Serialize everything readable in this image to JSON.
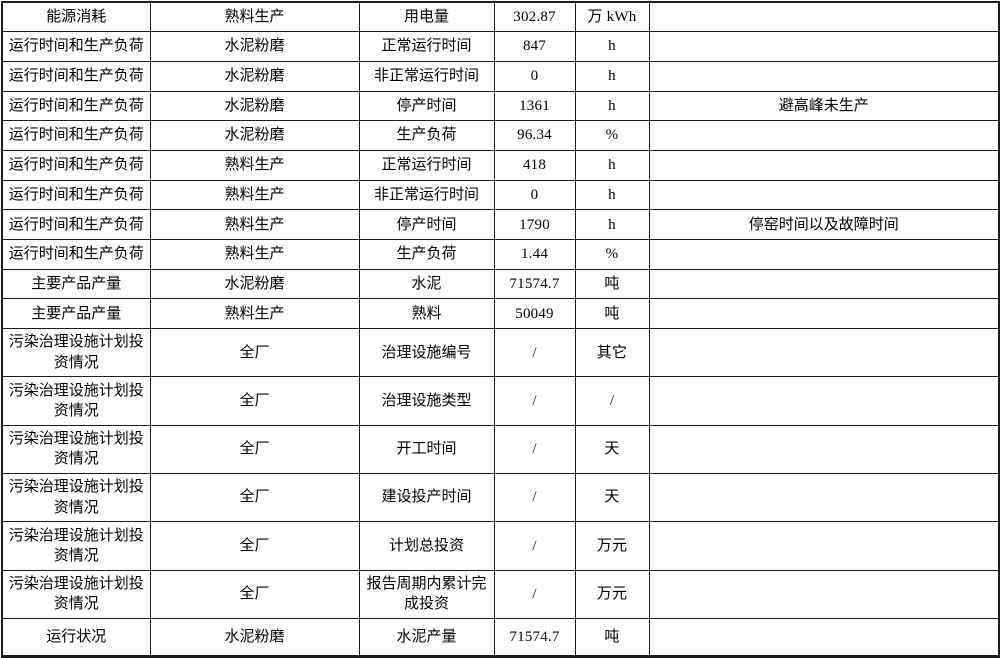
{
  "table": {
    "border_color": "#1c1c1c",
    "background_color": "#ffffff",
    "text_color": "#000000",
    "column_keys": [
      "category",
      "scope",
      "item",
      "value",
      "unit",
      "remark"
    ],
    "rows": [
      {
        "category": "能源消耗",
        "scope": "熟料生产",
        "item": "用电量",
        "value": "302.87",
        "unit": "万 kWh",
        "remark": ""
      },
      {
        "category": "运行时间和生产负荷",
        "scope": "水泥粉磨",
        "item": "正常运行时间",
        "value": "847",
        "unit": "h",
        "remark": ""
      },
      {
        "category": "运行时间和生产负荷",
        "scope": "水泥粉磨",
        "item": "非正常运行时间",
        "value": "0",
        "unit": "h",
        "remark": ""
      },
      {
        "category": "运行时间和生产负荷",
        "scope": "水泥粉磨",
        "item": "停产时间",
        "value": "1361",
        "unit": "h",
        "remark": "避高峰未生产"
      },
      {
        "category": "运行时间和生产负荷",
        "scope": "水泥粉磨",
        "item": "生产负荷",
        "value": "96.34",
        "unit": "%",
        "remark": ""
      },
      {
        "category": "运行时间和生产负荷",
        "scope": "熟料生产",
        "item": "正常运行时间",
        "value": "418",
        "unit": "h",
        "remark": ""
      },
      {
        "category": "运行时间和生产负荷",
        "scope": "熟料生产",
        "item": "非正常运行时间",
        "value": "0",
        "unit": "h",
        "remark": ""
      },
      {
        "category": "运行时间和生产负荷",
        "scope": "熟料生产",
        "item": "停产时间",
        "value": "1790",
        "unit": "h",
        "remark": "停窑时间以及故障时间"
      },
      {
        "category": "运行时间和生产负荷",
        "scope": "熟料生产",
        "item": "生产负荷",
        "value": "1.44",
        "unit": "%",
        "remark": ""
      },
      {
        "category": "主要产品产量",
        "scope": "水泥粉磨",
        "item": "水泥",
        "value": "71574.7",
        "unit": "吨",
        "remark": ""
      },
      {
        "category": "主要产品产量",
        "scope": "熟料生产",
        "item": "熟料",
        "value": "50049",
        "unit": "吨",
        "remark": ""
      },
      {
        "category": "污染治理设施计划投资情况",
        "scope": "全厂",
        "item": "治理设施编号",
        "value": "/",
        "unit": "其它",
        "remark": ""
      },
      {
        "category": "污染治理设施计划投资情况",
        "scope": "全厂",
        "item": "治理设施类型",
        "value": "/",
        "unit": "/",
        "remark": ""
      },
      {
        "category": "污染治理设施计划投资情况",
        "scope": "全厂",
        "item": "开工时间",
        "value": "/",
        "unit": "天",
        "remark": ""
      },
      {
        "category": "污染治理设施计划投资情况",
        "scope": "全厂",
        "item": "建设投产时间",
        "value": "/",
        "unit": "天",
        "remark": ""
      },
      {
        "category": "污染治理设施计划投资情况",
        "scope": "全厂",
        "item": "计划总投资",
        "value": "/",
        "unit": "万元",
        "remark": ""
      },
      {
        "category": "污染治理设施计划投资情况",
        "scope": "全厂",
        "item": "报告周期内累计完成投资",
        "value": "/",
        "unit": "万元",
        "remark": ""
      },
      {
        "category": "运行状况",
        "scope": "水泥粉磨",
        "item": "水泥产量",
        "value": "71574.7",
        "unit": "吨",
        "remark": ""
      }
    ]
  }
}
